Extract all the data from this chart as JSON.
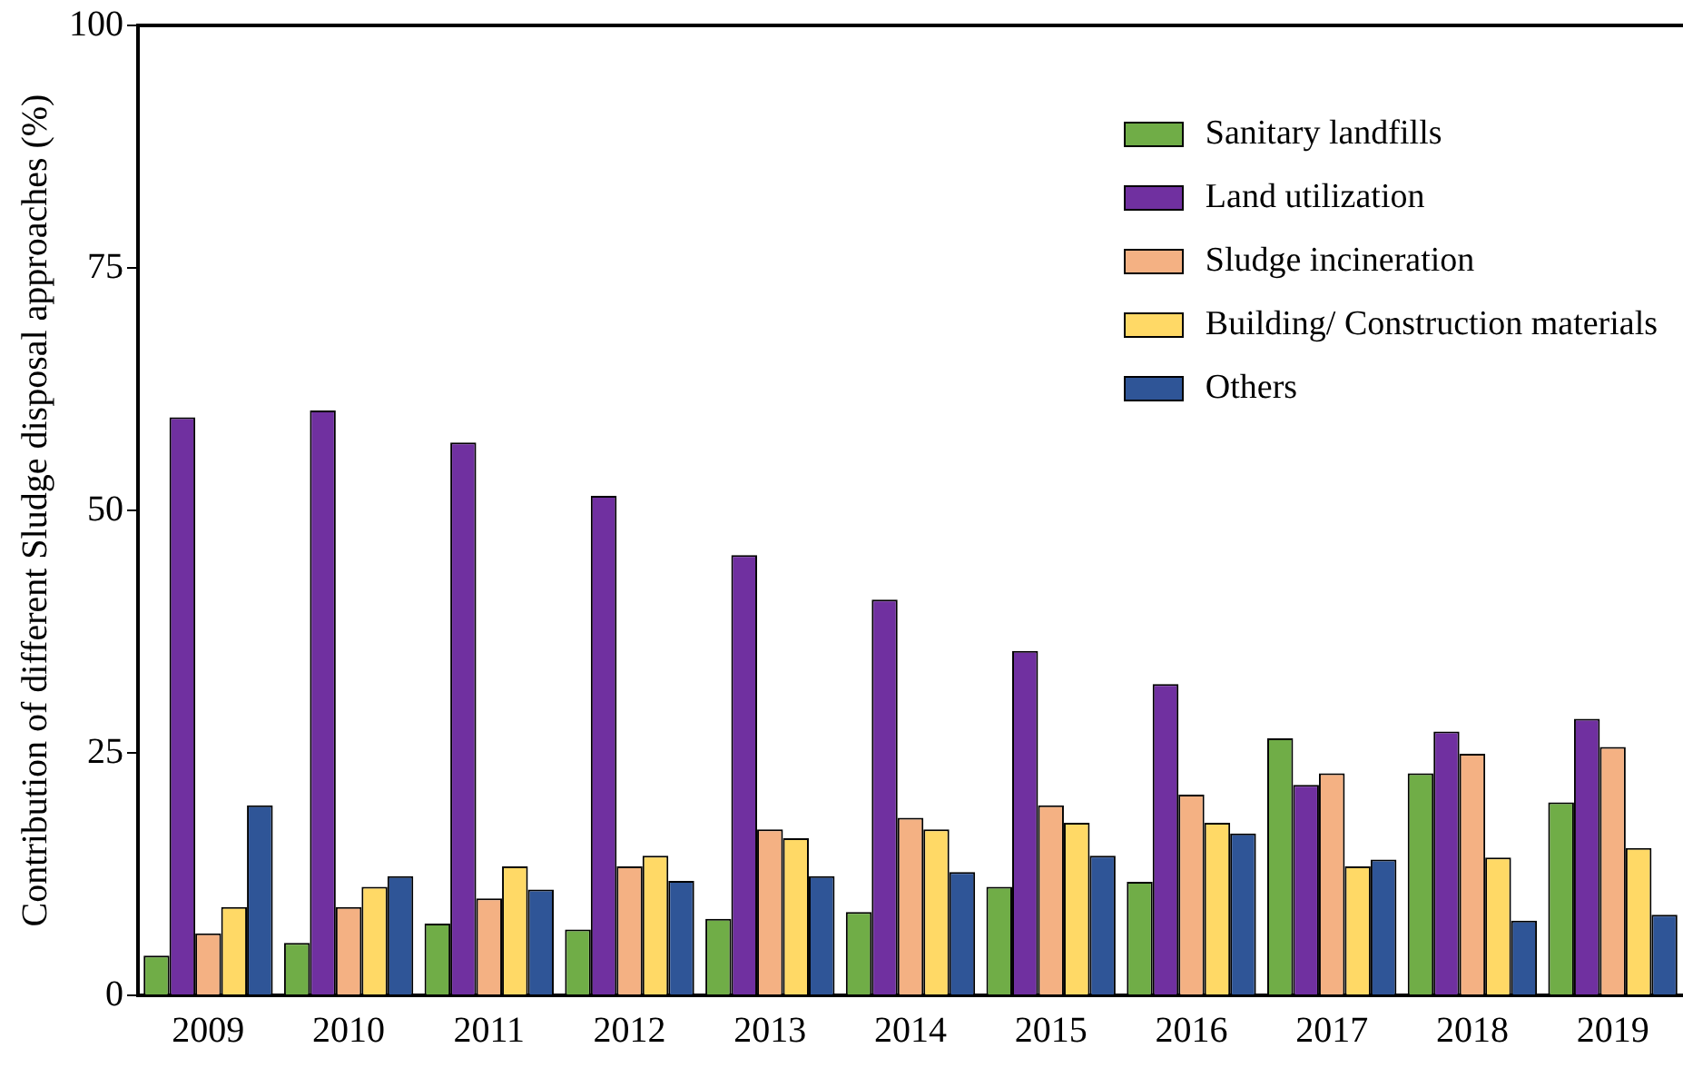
{
  "chart_data": {
    "type": "bar",
    "ylabel": "Contribution of different Sludge disposal approaches (%)",
    "categories": [
      "2009",
      "2010",
      "2011",
      "2012",
      "2013",
      "2014",
      "2015",
      "2016",
      "2017",
      "2018",
      "2019"
    ],
    "series": [
      {
        "name": "Sanitary landfills",
        "color": "#70ad47",
        "values": [
          4.1,
          5.4,
          7.4,
          6.8,
          7.9,
          8.6,
          11.2,
          11.7,
          26.5,
          22.9,
          19.9
        ]
      },
      {
        "name": "Land utilization",
        "color": "#7030a0",
        "values": [
          59.6,
          60.3,
          57.0,
          51.5,
          45.4,
          40.8,
          35.5,
          32.1,
          21.7,
          27.2,
          28.5
        ]
      },
      {
        "name": "Sludge incineration",
        "color": "#f4b183",
        "values": [
          6.4,
          9.1,
          10.0,
          13.3,
          17.1,
          18.3,
          19.6,
          20.7,
          22.9,
          24.9,
          25.6
        ]
      },
      {
        "name": "Building/ Construction materials",
        "color": "#ffd966",
        "values": [
          9.1,
          11.2,
          13.3,
          14.4,
          16.2,
          17.1,
          17.8,
          17.8,
          13.3,
          14.2,
          15.2
        ]
      },
      {
        "name": "Others",
        "color": "#2f5597",
        "values": [
          19.6,
          12.3,
          10.9,
          11.8,
          12.3,
          12.7,
          14.4,
          16.7,
          14.0,
          7.7,
          8.3
        ]
      }
    ],
    "ylim": [
      0,
      100
    ],
    "yticks": [
      0,
      25,
      50,
      75,
      100
    ],
    "grid": false,
    "legend": "top right"
  }
}
